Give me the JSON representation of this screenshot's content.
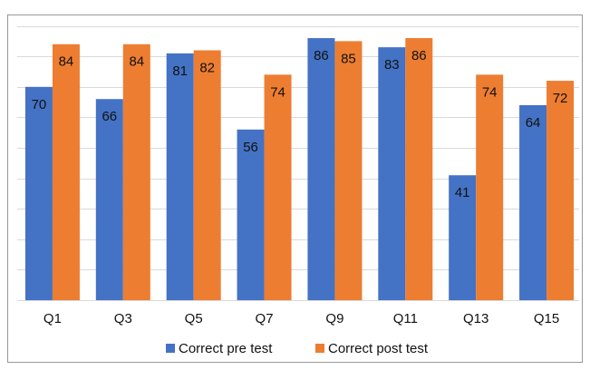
{
  "chart_data": {
    "type": "bar",
    "categories": [
      "Q1",
      "Q3",
      "Q5",
      "Q7",
      "Q9",
      "Q11",
      "Q13",
      "Q15"
    ],
    "series": [
      {
        "name": "Correct pre test",
        "color": "#4472c4",
        "values": [
          70,
          66,
          81,
          56,
          86,
          83,
          41,
          64
        ]
      },
      {
        "name": "Correct post test",
        "color": "#ed7d31",
        "values": [
          84,
          84,
          82,
          74,
          85,
          86,
          74,
          72
        ]
      }
    ],
    "ylim": [
      0,
      90
    ],
    "yticks": [
      0,
      10,
      20,
      30,
      40,
      50,
      60,
      70,
      80,
      90
    ],
    "grid": true,
    "legend": "bottom"
  }
}
